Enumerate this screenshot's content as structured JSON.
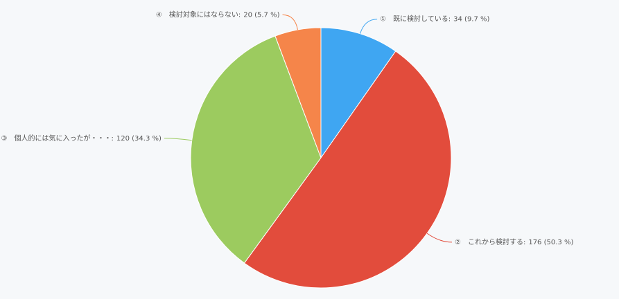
{
  "chart_data": {
    "type": "pie",
    "categories": [
      "①　既に検討している:",
      "②　これから検討する:",
      "③　個人的には気に入ったが・・・:",
      "④　検討対象にはならない:"
    ],
    "values": [
      34,
      176,
      120,
      20
    ],
    "value_labels": [
      "34 (9.7 %)",
      "176 (50.3 %)",
      "120 (34.3 %)",
      "20 (5.7 %)"
    ],
    "colors": [
      "#3fa6f2",
      "#e24c3c",
      "#9ccb5f",
      "#f5854a"
    ]
  }
}
